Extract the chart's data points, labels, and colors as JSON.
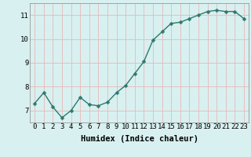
{
  "x": [
    0,
    1,
    2,
    3,
    4,
    5,
    6,
    7,
    8,
    9,
    10,
    11,
    12,
    13,
    14,
    15,
    16,
    17,
    18,
    19,
    20,
    21,
    22,
    23
  ],
  "y": [
    7.3,
    7.75,
    7.15,
    6.7,
    7.0,
    7.55,
    7.25,
    7.2,
    7.35,
    7.75,
    8.05,
    8.55,
    9.05,
    9.95,
    10.3,
    10.65,
    10.7,
    10.85,
    11.0,
    11.15,
    11.2,
    11.15,
    11.15,
    10.85
  ],
  "line_color": "#2d7a6e",
  "marker": "D",
  "marker_size": 2.5,
  "bg_color": "#d8f0f0",
  "grid_color": "#e8b8b8",
  "xlabel": "Humidex (Indice chaleur)",
  "ylim": [
    6.5,
    11.5
  ],
  "xlim": [
    -0.5,
    23.5
  ],
  "yticks": [
    7,
    8,
    9,
    10,
    11
  ],
  "xticks": [
    0,
    1,
    2,
    3,
    4,
    5,
    6,
    7,
    8,
    9,
    10,
    11,
    12,
    13,
    14,
    15,
    16,
    17,
    18,
    19,
    20,
    21,
    22,
    23
  ],
  "xlabel_fontsize": 7.5,
  "tick_fontsize": 6.5,
  "line_width": 1.0
}
